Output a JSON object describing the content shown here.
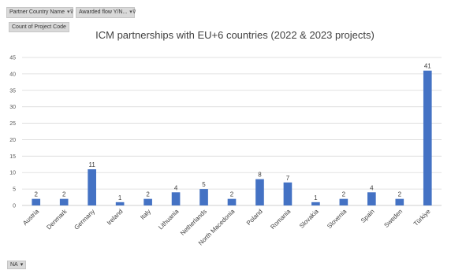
{
  "filters": {
    "country_label": "Partner Country Name",
    "awarded_label": "Awarded flow Y/N..."
  },
  "value_field": "Count of Project Code",
  "axis_field": "NA",
  "icons": {
    "filter": "filter-dropdown-icon",
    "dropdown": "dropdown-arrow-icon"
  },
  "colors": {
    "bar": "#4472c4",
    "grid": "#d9d9d9"
  },
  "chart_data": {
    "type": "bar",
    "title": "ICM partnerships with EU+6 countries (2022 & 2023 projects)",
    "xlabel": "",
    "ylabel": "",
    "ylim": [
      0,
      45
    ],
    "yticks": [
      0,
      5,
      10,
      15,
      20,
      25,
      30,
      35,
      40,
      45
    ],
    "grid": true,
    "categories": [
      "Austria",
      "Denmark",
      "Germany",
      "Ireland",
      "Italy",
      "Lithuania",
      "Netherlands",
      "North Macedonia",
      "Poland",
      "Romania",
      "Slovakia",
      "Slovenia",
      "Spain",
      "Sweden",
      "Türkiye"
    ],
    "values": [
      2,
      2,
      11,
      1,
      2,
      4,
      5,
      2,
      8,
      7,
      1,
      2,
      4,
      2,
      41
    ]
  }
}
